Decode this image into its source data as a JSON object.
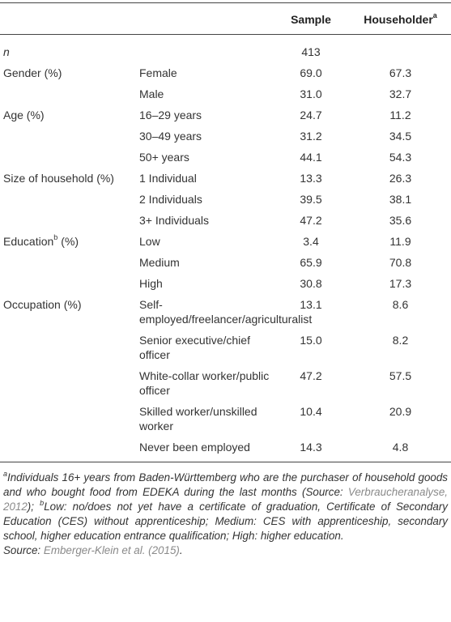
{
  "table": {
    "header": {
      "sample": "Sample",
      "householder": "Householder",
      "householder_sup": "a"
    },
    "rows": [
      {
        "label": "n",
        "italic": true,
        "sample": "413"
      },
      {
        "label": "Gender (%)",
        "sub": "Female",
        "sample": "69.0",
        "householder": "67.3"
      },
      {
        "sub": "Male",
        "sample": "31.0",
        "householder": "32.7"
      },
      {
        "label": "Age (%)",
        "sub": "16–29 years",
        "sample": "24.7",
        "householder": "11.2"
      },
      {
        "sub": "30–49 years",
        "sample": "31.2",
        "householder": "34.5"
      },
      {
        "sub": "50+ years",
        "sample": "44.1",
        "householder": "54.3"
      },
      {
        "label": "Size of household (%)",
        "sub": "1 Individual",
        "sample": "13.3",
        "householder": "26.3"
      },
      {
        "sub": "2 Individuals",
        "sample": "39.5",
        "householder": "38.1"
      },
      {
        "sub": "3+ Individuals",
        "sample": "47.2",
        "householder": "35.6"
      },
      {
        "label": "Education",
        "sup": "b",
        "suffix": "(%)",
        "sub": "Low",
        "sample": "3.4",
        "householder": "11.9"
      },
      {
        "sub": "Medium",
        "sample": "65.9",
        "householder": "70.8"
      },
      {
        "sub": "High",
        "sample": "30.8",
        "householder": "17.3"
      },
      {
        "label": "Occupation (%)",
        "sub": "Self-employed/freelancer/agriculturalist",
        "sample": "13.1",
        "householder": "8.6"
      },
      {
        "sub": "Senior executive/chief officer",
        "sample": "15.0",
        "householder": "8.2"
      },
      {
        "sub": "White-collar worker/public officer",
        "sample": "47.2",
        "householder": "57.5"
      },
      {
        "sub": "Skilled worker/unskilled worker",
        "sample": "10.4",
        "householder": "20.9"
      },
      {
        "sub": "Never been employed",
        "sample": "14.3",
        "householder": "4.8"
      }
    ]
  },
  "footnotes": {
    "a": {
      "marker": "a",
      "text": "Individuals 16+ years from Baden-Württemberg who are the purchaser of household goods and who bought food from EDEKA during the last months (Source: ",
      "link": "Verbraucheranalyse, 2012",
      "after": "); "
    },
    "b": {
      "marker": "b",
      "text": "Low: no/does not yet have a certificate of graduation, Certificate of Secondary Education (CES) without apprenticeship; Medium: CES with apprenticeship, secondary school, higher education entrance qualification; High: higher education."
    },
    "source": {
      "label": "Source:",
      "link": "Emberger-Klein et al. (2015)",
      "after": "."
    }
  }
}
